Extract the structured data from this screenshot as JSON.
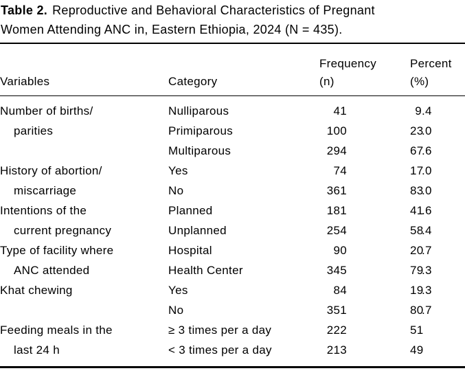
{
  "caption": {
    "label": "Table 2.",
    "line1_rest": "Reproductive and Behavioral Characteristics of Pregnant",
    "line2": "Women Attending ANC in, Eastern Ethiopia, 2024 (N = 435)."
  },
  "table": {
    "columns": {
      "variables": "Variables",
      "category": "Category",
      "frequency_line1": "Frequency",
      "frequency_line2": "(n)",
      "percent_line1": "Percent",
      "percent_line2": "(%)"
    },
    "rows": [
      {
        "variable": "Number of births/",
        "cont": false,
        "category": "Nulliparous",
        "n": "41",
        "pct": "9.4"
      },
      {
        "variable": "parities",
        "cont": true,
        "category": "Primiparous",
        "n": "100",
        "pct": "23.0"
      },
      {
        "variable": "",
        "cont": false,
        "category": "Multiparous",
        "n": "294",
        "pct": "67.6"
      },
      {
        "variable": "History of abortion/",
        "cont": false,
        "category": "Yes",
        "n": "74",
        "pct": "17.0"
      },
      {
        "variable": "miscarriage",
        "cont": true,
        "category": "No",
        "n": "361",
        "pct": "83.0"
      },
      {
        "variable": "Intentions of the",
        "cont": false,
        "category": "Planned",
        "n": "181",
        "pct": "41.6"
      },
      {
        "variable": "current pregnancy",
        "cont": true,
        "category": "Unplanned",
        "n": "254",
        "pct": "58.4"
      },
      {
        "variable": "Type of facility where",
        "cont": false,
        "category": "Hospital",
        "n": "90",
        "pct": "20.7"
      },
      {
        "variable": "ANC attended",
        "cont": true,
        "category": "Health Center",
        "n": "345",
        "pct": "79.3"
      },
      {
        "variable": "Khat chewing",
        "cont": false,
        "category": "Yes",
        "n": "84",
        "pct": "19.3"
      },
      {
        "variable": "",
        "cont": false,
        "category": "No",
        "n": "351",
        "pct": "80.7"
      },
      {
        "variable": "Feeding meals in the",
        "cont": false,
        "category": "≥ 3 times per a day",
        "n": "222",
        "pct": "51"
      },
      {
        "variable": "last 24 h",
        "cont": true,
        "category": "< 3 times per a day",
        "n": "213",
        "pct": "49"
      }
    ]
  }
}
